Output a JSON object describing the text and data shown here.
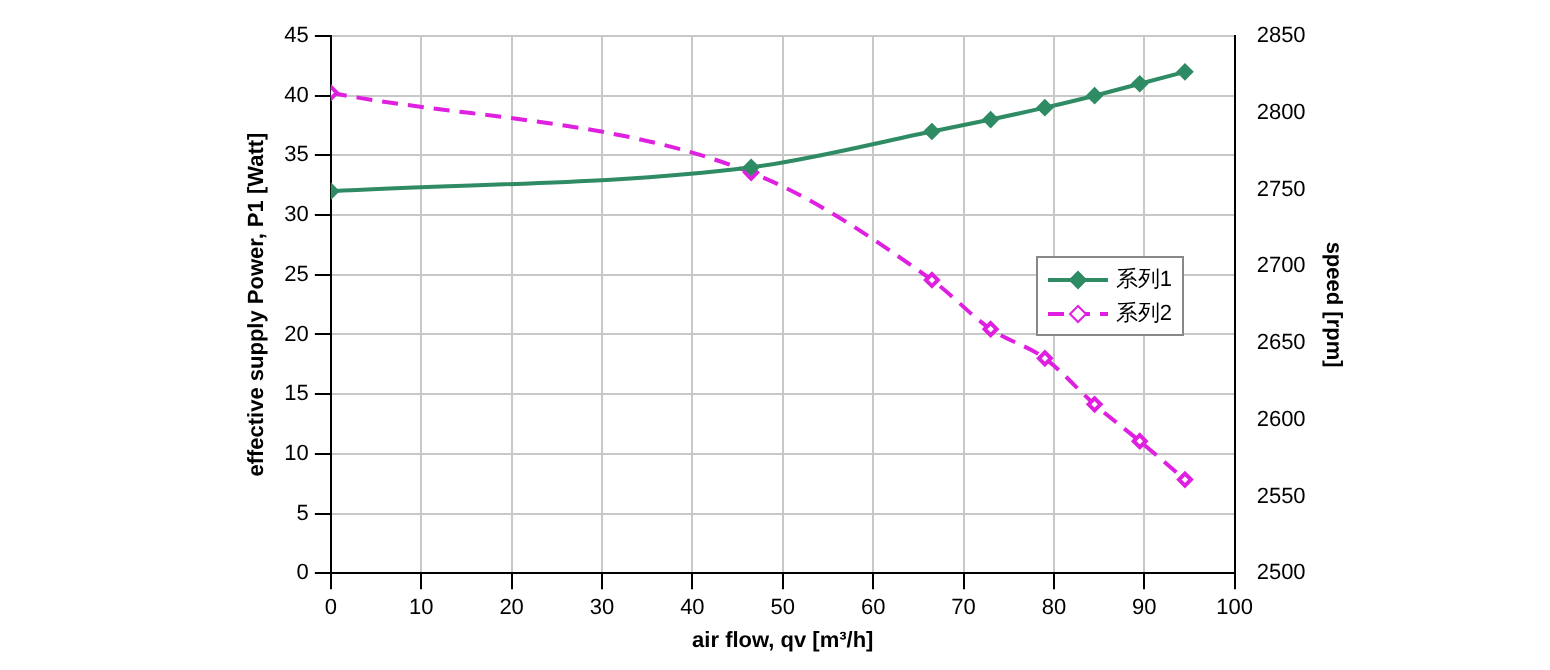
{
  "chart_data": {
    "type": "line",
    "xlabel": "air flow, qv [m³/h]",
    "ylabel": "effective supply Power, P1 [Watt]",
    "y2label": "speed [rpm]",
    "xlim": [
      0,
      100
    ],
    "xticks": [
      0,
      10,
      20,
      30,
      40,
      50,
      60,
      70,
      80,
      90,
      100
    ],
    "ylim": [
      0,
      45
    ],
    "yticks": [
      0,
      5,
      10,
      15,
      20,
      25,
      30,
      35,
      40,
      45
    ],
    "y2lim": [
      2500,
      2850
    ],
    "y2ticks": [
      2500,
      2550,
      2600,
      2650,
      2700,
      2750,
      2800,
      2850
    ],
    "grid": true,
    "legend": "right",
    "marker": "diamond",
    "series": [
      {
        "name": "系列1",
        "color": "#2e8b63",
        "line_style": "solid",
        "x": [
          0,
          46.5,
          66.5,
          73,
          79,
          84.5,
          89.5,
          94.5
        ],
        "values": [
          32,
          34,
          37,
          38,
          39,
          40,
          41,
          42
        ]
      },
      {
        "name": "系列2",
        "color": "#e020e0",
        "line_style": "dashed",
        "axis": "y2",
        "x": [
          0,
          46.5,
          66.5,
          73,
          79,
          84.5,
          89.5,
          94.5
        ],
        "values": [
          2813,
          2761,
          2691,
          2659,
          2640,
          2610,
          2586,
          2561
        ]
      }
    ]
  }
}
